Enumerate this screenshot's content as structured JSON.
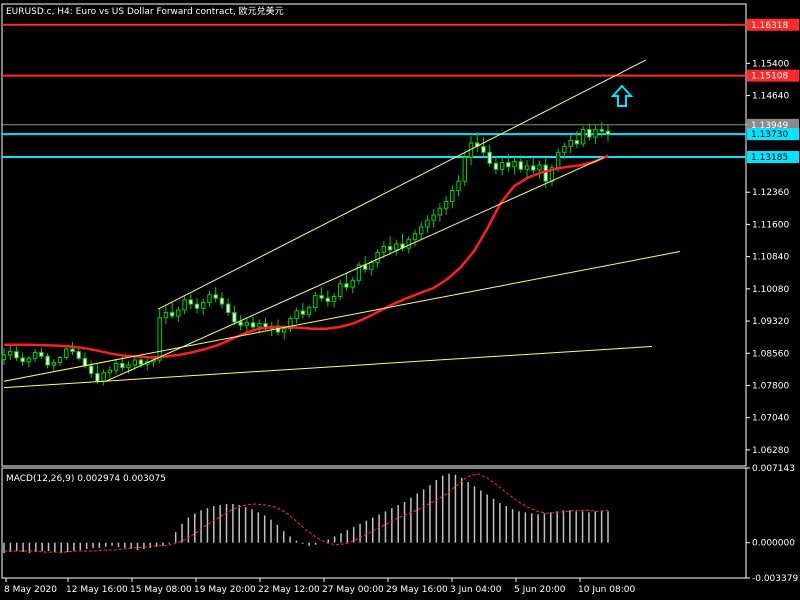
{
  "chart_data": [
    {
      "type": "candlestick",
      "title": "EURUSD.c, H4:  Euro vs US Dollar Forward contract, 欧元兑美元",
      "ylim": [
        1.059,
        1.168
      ],
      "y_ticks": [
        "1.15400",
        "1.14640",
        "1.13949",
        "1.12360",
        "1.11600",
        "1.10840",
        "1.10080",
        "1.09320",
        "1.08560",
        "1.07800",
        "1.07040",
        "1.06280"
      ],
      "x_ticks": [
        "8 May 2020",
        "12 May 16:00",
        "15 May 08:00",
        "19 May 20:00",
        "22 May 12:00",
        "27 May 00:00",
        "29 May 16:00",
        "3 Jun 04:00",
        "5 Jun 20:00",
        "10 Jun 08:00"
      ],
      "price_tags": [
        {
          "value": 1.1631,
          "label": "1.16318",
          "color": "#ff2a2a",
          "line": true
        },
        {
          "value": 1.1511,
          "label": "1.15108",
          "color": "#ff2a2a",
          "line": true
        },
        {
          "value": 1.1395,
          "label": "1.13949",
          "color": "#8a8a8a",
          "line": true
        },
        {
          "value": 1.1373,
          "label": "1.13730",
          "color": "#00e5ff",
          "line": true
        },
        {
          "value": 1.1319,
          "label": "1.13185",
          "color": "#00e5ff",
          "line": true
        }
      ],
      "candles": [
        [
          1.0841,
          1.0868,
          1.0829,
          1.0852
        ],
        [
          1.0852,
          1.0874,
          1.084,
          1.086
        ],
        [
          1.086,
          1.0872,
          1.0838,
          1.0845
        ],
        [
          1.0845,
          1.0858,
          1.0826,
          1.0836
        ],
        [
          1.0836,
          1.085,
          1.0822,
          1.0844
        ],
        [
          1.0844,
          1.0866,
          1.0836,
          1.0858
        ],
        [
          1.0858,
          1.0869,
          1.0843,
          1.0849
        ],
        [
          1.0849,
          1.0856,
          1.082,
          1.0828
        ],
        [
          1.0828,
          1.0842,
          1.0812,
          1.0834
        ],
        [
          1.0834,
          1.085,
          1.0826,
          1.0846
        ],
        [
          1.0846,
          1.0872,
          1.084,
          1.0866
        ],
        [
          1.0866,
          1.0883,
          1.0852,
          1.086
        ],
        [
          1.086,
          1.0869,
          1.0838,
          1.0844
        ],
        [
          1.0844,
          1.0858,
          1.082,
          1.0826
        ],
        [
          1.0826,
          1.0838,
          1.0798,
          1.0808
        ],
        [
          1.0808,
          1.083,
          1.0783,
          1.079
        ],
        [
          1.079,
          1.0818,
          1.078,
          1.081
        ],
        [
          1.081,
          1.0826,
          1.0796,
          1.0816
        ],
        [
          1.0816,
          1.084,
          1.0806,
          1.0832
        ],
        [
          1.0832,
          1.0848,
          1.0814,
          1.0822
        ],
        [
          1.0822,
          1.0838,
          1.0808,
          1.0828
        ],
        [
          1.0828,
          1.0846,
          1.0818,
          1.084
        ],
        [
          1.084,
          1.0853,
          1.0822,
          1.083
        ],
        [
          1.083,
          1.0844,
          1.0816,
          1.0836
        ],
        [
          1.0836,
          1.0848,
          1.0824,
          1.084
        ],
        [
          1.084,
          1.096,
          1.0832,
          1.094
        ],
        [
          1.094,
          1.0968,
          1.0924,
          1.0952
        ],
        [
          1.0952,
          1.0978,
          1.0938,
          1.0944
        ],
        [
          1.0944,
          1.0966,
          1.093,
          1.0958
        ],
        [
          1.0958,
          1.099,
          1.0948,
          1.0982
        ],
        [
          1.0982,
          1.0996,
          1.096,
          1.0972
        ],
        [
          1.0972,
          1.0986,
          1.095,
          1.0962
        ],
        [
          1.0962,
          1.0984,
          1.0946,
          1.0976
        ],
        [
          1.0976,
          1.1004,
          1.0966,
          1.0994
        ],
        [
          1.0994,
          1.1012,
          1.0976,
          1.0986
        ],
        [
          1.0986,
          1.1,
          1.0962,
          1.0972
        ],
        [
          1.0972,
          1.0986,
          1.0944,
          1.0952
        ],
        [
          1.0952,
          1.0968,
          1.0922,
          1.093
        ],
        [
          1.093,
          1.0946,
          1.091,
          1.0922
        ],
        [
          1.0922,
          1.0938,
          1.0906,
          1.0928
        ],
        [
          1.0928,
          1.0942,
          1.091,
          1.0918
        ],
        [
          1.0918,
          1.0936,
          1.0904,
          1.0926
        ],
        [
          1.0926,
          1.094,
          1.091,
          1.0914
        ],
        [
          1.0914,
          1.093,
          1.0896,
          1.092
        ],
        [
          1.092,
          1.0936,
          1.0898,
          1.0906
        ],
        [
          1.0906,
          1.0922,
          1.0888,
          1.0914
        ],
        [
          1.0914,
          1.0944,
          1.0906,
          1.0938
        ],
        [
          1.0938,
          1.0964,
          1.0926,
          1.0956
        ],
        [
          1.0956,
          1.0974,
          1.0938,
          1.0948
        ],
        [
          1.0948,
          1.097,
          1.094,
          1.0964
        ],
        [
          1.0964,
          1.1,
          1.0954,
          1.0992
        ],
        [
          1.0992,
          1.1012,
          1.0978,
          1.0986
        ],
        [
          1.0986,
          1.1004,
          1.0966,
          1.0978
        ],
        [
          1.0978,
          1.0998,
          1.0964,
          1.099
        ],
        [
          1.099,
          1.103,
          1.0982,
          1.102
        ],
        [
          1.102,
          1.1046,
          1.1004,
          1.1012
        ],
        [
          1.1012,
          1.1036,
          1.0998,
          1.1028
        ],
        [
          1.1028,
          1.1072,
          1.1018,
          1.1064
        ],
        [
          1.1064,
          1.1086,
          1.1046,
          1.1054
        ],
        [
          1.1054,
          1.1076,
          1.104,
          1.107
        ],
        [
          1.107,
          1.1102,
          1.1058,
          1.1094
        ],
        [
          1.1094,
          1.112,
          1.108,
          1.1108
        ],
        [
          1.1108,
          1.1132,
          1.1088,
          1.11
        ],
        [
          1.11,
          1.1124,
          1.1086,
          1.1114
        ],
        [
          1.1114,
          1.1138,
          1.1096,
          1.1104
        ],
        [
          1.1104,
          1.1132,
          1.1092,
          1.1124
        ],
        [
          1.1124,
          1.1148,
          1.1108,
          1.1138
        ],
        [
          1.1138,
          1.1166,
          1.1122,
          1.1154
        ],
        [
          1.1154,
          1.1182,
          1.114,
          1.117
        ],
        [
          1.117,
          1.1196,
          1.1152,
          1.1182
        ],
        [
          1.1182,
          1.121,
          1.1166,
          1.1198
        ],
        [
          1.1198,
          1.1228,
          1.1182,
          1.1214
        ],
        [
          1.1214,
          1.1252,
          1.1198,
          1.124
        ],
        [
          1.124,
          1.1276,
          1.1226,
          1.1262
        ],
        [
          1.1262,
          1.133,
          1.125,
          1.1318
        ],
        [
          1.1318,
          1.1368,
          1.13,
          1.1352
        ],
        [
          1.1352,
          1.1378,
          1.133,
          1.1344
        ],
        [
          1.1344,
          1.1366,
          1.132,
          1.133
        ],
        [
          1.133,
          1.1348,
          1.1296,
          1.1304
        ],
        [
          1.1304,
          1.132,
          1.1278,
          1.129
        ],
        [
          1.129,
          1.1316,
          1.1276,
          1.1306
        ],
        [
          1.1306,
          1.1326,
          1.1284,
          1.1296
        ],
        [
          1.1296,
          1.1318,
          1.1278,
          1.1308
        ],
        [
          1.1308,
          1.1324,
          1.1282,
          1.129
        ],
        [
          1.129,
          1.1312,
          1.127,
          1.1298
        ],
        [
          1.1298,
          1.1318,
          1.128,
          1.1288
        ],
        [
          1.1288,
          1.131,
          1.1268,
          1.13
        ],
        [
          1.13,
          1.1316,
          1.1246,
          1.1262
        ],
        [
          1.1262,
          1.1302,
          1.125,
          1.1294
        ],
        [
          1.1294,
          1.134,
          1.1284,
          1.133
        ],
        [
          1.133,
          1.1352,
          1.1314,
          1.1344
        ],
        [
          1.1344,
          1.137,
          1.1328,
          1.1358
        ],
        [
          1.1358,
          1.138,
          1.134,
          1.135
        ],
        [
          1.135,
          1.1392,
          1.1342,
          1.1384
        ],
        [
          1.1384,
          1.1398,
          1.1358,
          1.1366
        ],
        [
          1.1366,
          1.1394,
          1.135,
          1.1384
        ],
        [
          1.1384,
          1.1402,
          1.1366,
          1.138
        ],
        [
          1.138,
          1.1396,
          1.1356,
          1.1372
        ]
      ],
      "ma_values": [
        1.0876,
        1.0876,
        1.0876,
        1.0875,
        1.0874,
        1.0872,
        1.0868,
        1.0862,
        1.0855,
        1.085,
        1.0848,
        1.0846,
        1.0848,
        1.0852,
        1.0858,
        1.0866,
        1.0876,
        1.089,
        1.0904,
        1.0914,
        1.0918,
        1.0918,
        1.0916,
        1.0914,
        1.0914,
        1.0918,
        1.0926,
        1.094,
        1.0956,
        1.0972,
        1.0986,
        1.0998,
        1.101,
        1.103,
        1.1058,
        1.1096,
        1.115,
        1.121,
        1.125,
        1.127,
        1.1282,
        1.129,
        1.1296,
        1.13,
        1.1308,
        1.1322
      ],
      "channel_lines": [
        {
          "x_frac": [
            0.0,
            1.0
          ],
          "y": [
            1.0775,
            1.0872
          ],
          "color": "#ffff66"
        },
        {
          "x_frac": [
            0.0,
            1.0
          ],
          "y": [
            1.079,
            1.1096
          ],
          "color": "#ffff66"
        },
        {
          "x_frac": [
            0.0,
            1.0
          ],
          "y": [
            1.079,
            1.1318
          ],
          "color": "#ffff66"
        },
        {
          "x_frac": [
            0.0,
            1.0
          ],
          "y": [
            1.096,
            1.1548
          ],
          "color": "#ffff66"
        }
      ],
      "arrow": {
        "direction": "up",
        "color": "#00e5ff"
      }
    },
    {
      "type": "bar",
      "title": "MACD(12,26,9) 0.002974 0.003075",
      "ylim": [
        -0.003379,
        0.007143
      ],
      "y_ticks": [
        "0.007143",
        "0.000000",
        "-0.003379"
      ],
      "macd_values": [
        -0.001,
        -0.0009,
        -0.0008,
        -0.0009,
        -0.001,
        -0.0009,
        -0.0008,
        -0.0008,
        -0.0009,
        -0.001,
        -0.0009,
        -0.0008,
        -0.0007,
        -0.0006,
        -0.0005,
        -0.0005,
        -0.0004,
        -0.0003,
        -0.0004,
        -0.0005,
        -0.0006,
        -0.0007,
        -0.0006,
        -0.0005,
        -0.0004,
        -0.0003,
        -0.0001,
        0.001,
        0.0018,
        0.0024,
        0.0028,
        0.0031,
        0.0033,
        0.0035,
        0.0036,
        0.0037,
        0.0037,
        0.0036,
        0.0034,
        0.0032,
        0.0029,
        0.0026,
        0.0022,
        0.0017,
        0.0011,
        0.0006,
        0.0002,
        -0.0001,
        -0.0003,
        -0.0002,
        0.0,
        0.0003,
        0.0006,
        0.0009,
        0.0012,
        0.0015,
        0.0018,
        0.0021,
        0.0024,
        0.0027,
        0.003,
        0.0033,
        0.0036,
        0.0039,
        0.0043,
        0.0047,
        0.0051,
        0.0055,
        0.006,
        0.0064,
        0.0066,
        0.0065,
        0.0062,
        0.0058,
        0.0054,
        0.005,
        0.0046,
        0.0042,
        0.0038,
        0.0035,
        0.0032,
        0.003,
        0.0029,
        0.0028,
        0.0027,
        0.0028,
        0.0029,
        0.003,
        0.0031,
        0.0031,
        0.003,
        0.003,
        0.0029,
        0.003,
        0.003,
        0.003
      ],
      "signal_values": [
        -0.0008,
        -0.0008,
        -0.0008,
        -0.0008,
        -0.0009,
        -0.0009,
        -0.0009,
        -0.0008,
        -0.0008,
        -0.0008,
        -0.0007,
        -0.0007,
        -0.0006,
        -0.0005,
        -0.0004,
        -0.0003,
        -0.0003,
        -0.0001,
        0.0003,
        0.0009,
        0.0016,
        0.0022,
        0.0028,
        0.0033,
        0.0036,
        0.0037,
        0.0036,
        0.0034,
        0.0029,
        0.0021,
        0.0012,
        0.0005,
        0.0,
        -0.0002,
        -0.0001,
        0.0003,
        0.0008,
        0.0013,
        0.0018,
        0.0023,
        0.0027,
        0.0031,
        0.0036,
        0.0041,
        0.0047,
        0.0055,
        0.0063,
        0.0066,
        0.0062,
        0.0055,
        0.0047,
        0.004,
        0.0034,
        0.003,
        0.0028,
        0.0029,
        0.003,
        0.0031,
        0.0031,
        0.003,
        0.0031
      ],
      "colors": {
        "histogram": "#c0c0c0",
        "signal": "#ff3030"
      }
    }
  ]
}
